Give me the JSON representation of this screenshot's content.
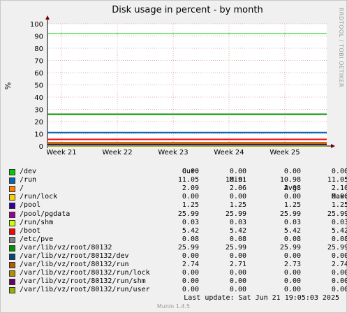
{
  "chart_data": {
    "type": "line",
    "title": "Disk usage in percent - by month",
    "ylabel": "%",
    "ylim": [
      0,
      100
    ],
    "yticks": [
      0,
      10,
      20,
      30,
      40,
      50,
      60,
      70,
      80,
      90,
      100
    ],
    "xtick_labels": [
      "Week 21",
      "Week 22",
      "Week 23",
      "Week 24",
      "Week 25"
    ],
    "warning_line": 92,
    "columns": [
      "Cur:",
      "Min:",
      "Avg:",
      "Max:"
    ],
    "series": [
      {
        "name": "/dev",
        "color": "#00cc00",
        "cur": "0.00",
        "min": "0.00",
        "avg": "0.00",
        "max": "0.00",
        "value": 0.0
      },
      {
        "name": "/run",
        "color": "#0066b3",
        "cur": "11.05",
        "min": "10.91",
        "avg": "10.98",
        "max": "11.05",
        "value": 10.98
      },
      {
        "name": "/",
        "color": "#ff8000",
        "cur": "2.09",
        "min": "2.06",
        "avg": "2.08",
        "max": "2.10",
        "value": 2.08
      },
      {
        "name": "/run/lock",
        "color": "#ffcc00",
        "cur": "0.00",
        "min": "0.00",
        "avg": "0.00",
        "max": "0.00",
        "value": 0.0
      },
      {
        "name": "/pool",
        "color": "#330099",
        "cur": "1.25",
        "min": "1.25",
        "avg": "1.25",
        "max": "1.25",
        "value": 1.25
      },
      {
        "name": "/pool/pgdata",
        "color": "#990099",
        "cur": "25.99",
        "min": "25.99",
        "avg": "25.99",
        "max": "25.99",
        "value": 25.99
      },
      {
        "name": "/run/shm",
        "color": "#ccff00",
        "cur": "0.03",
        "min": "0.03",
        "avg": "0.03",
        "max": "0.03",
        "value": 0.03
      },
      {
        "name": "/boot",
        "color": "#ff0000",
        "cur": "5.42",
        "min": "5.42",
        "avg": "5.42",
        "max": "5.42",
        "value": 5.42
      },
      {
        "name": "/etc/pve",
        "color": "#808080",
        "cur": "0.08",
        "min": "0.08",
        "avg": "0.08",
        "max": "0.08",
        "value": 0.08
      },
      {
        "name": "/var/lib/vz/root/80132",
        "color": "#008f00",
        "cur": "25.99",
        "min": "25.99",
        "avg": "25.99",
        "max": "25.99",
        "value": 25.99
      },
      {
        "name": "/var/lib/vz/root/80132/dev",
        "color": "#00487d",
        "cur": "0.00",
        "min": "0.00",
        "avg": "0.00",
        "max": "0.00",
        "value": 0.0
      },
      {
        "name": "/var/lib/vz/root/80132/run",
        "color": "#b35a00",
        "cur": "2.74",
        "min": "2.71",
        "avg": "2.73",
        "max": "2.74",
        "value": 2.73
      },
      {
        "name": "/var/lib/vz/root/80132/run/lock",
        "color": "#b38f00",
        "cur": "0.00",
        "min": "0.00",
        "avg": "0.00",
        "max": "0.00",
        "value": 0.0
      },
      {
        "name": "/var/lib/vz/root/80132/run/shm",
        "color": "#6b006b",
        "cur": "0.00",
        "min": "0.00",
        "avg": "0.00",
        "max": "0.00",
        "value": 0.0
      },
      {
        "name": "/var/lib/vz/root/80132/run/user",
        "color": "#8fb300",
        "cur": "0.00",
        "min": "0.00",
        "avg": "0.00",
        "max": "0.00",
        "value": 0.0
      }
    ]
  },
  "side_label": "RRDTOOL / TOBI OETIKER",
  "last_update": "Last update:  Sat Jun 21 19:05:03 2025",
  "footer": "Munin 1.4.5"
}
